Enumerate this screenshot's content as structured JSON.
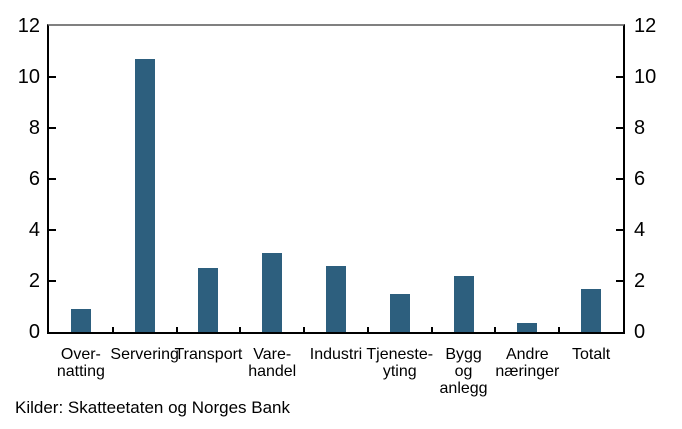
{
  "chart_data": {
    "type": "bar",
    "categories": [
      "Over-\nnatting",
      "Servering",
      "Transport",
      "Vare-\nhandel",
      "Industri",
      "Tjeneste-\nyting",
      "Bygg\nog\nanlegg",
      "Andre\nnæringer",
      "Totalt"
    ],
    "values": [
      0.9,
      10.7,
      2.5,
      3.1,
      2.6,
      1.5,
      2.2,
      0.35,
      1.7
    ],
    "title": "",
    "xlabel": "",
    "ylabel": "",
    "ylim": [
      0,
      12
    ],
    "yticks": [
      0,
      2,
      4,
      6,
      8,
      10,
      12
    ],
    "grid": false,
    "legend": "none",
    "dual_y_axis_labels": true,
    "colors": {
      "bar": "#2d5f7e",
      "axis": "#000000",
      "top_border": "#808080",
      "text": "#000000",
      "background": "#ffffff"
    }
  },
  "source": {
    "text": "Kilder: Skatteetaten og Norges Bank"
  }
}
